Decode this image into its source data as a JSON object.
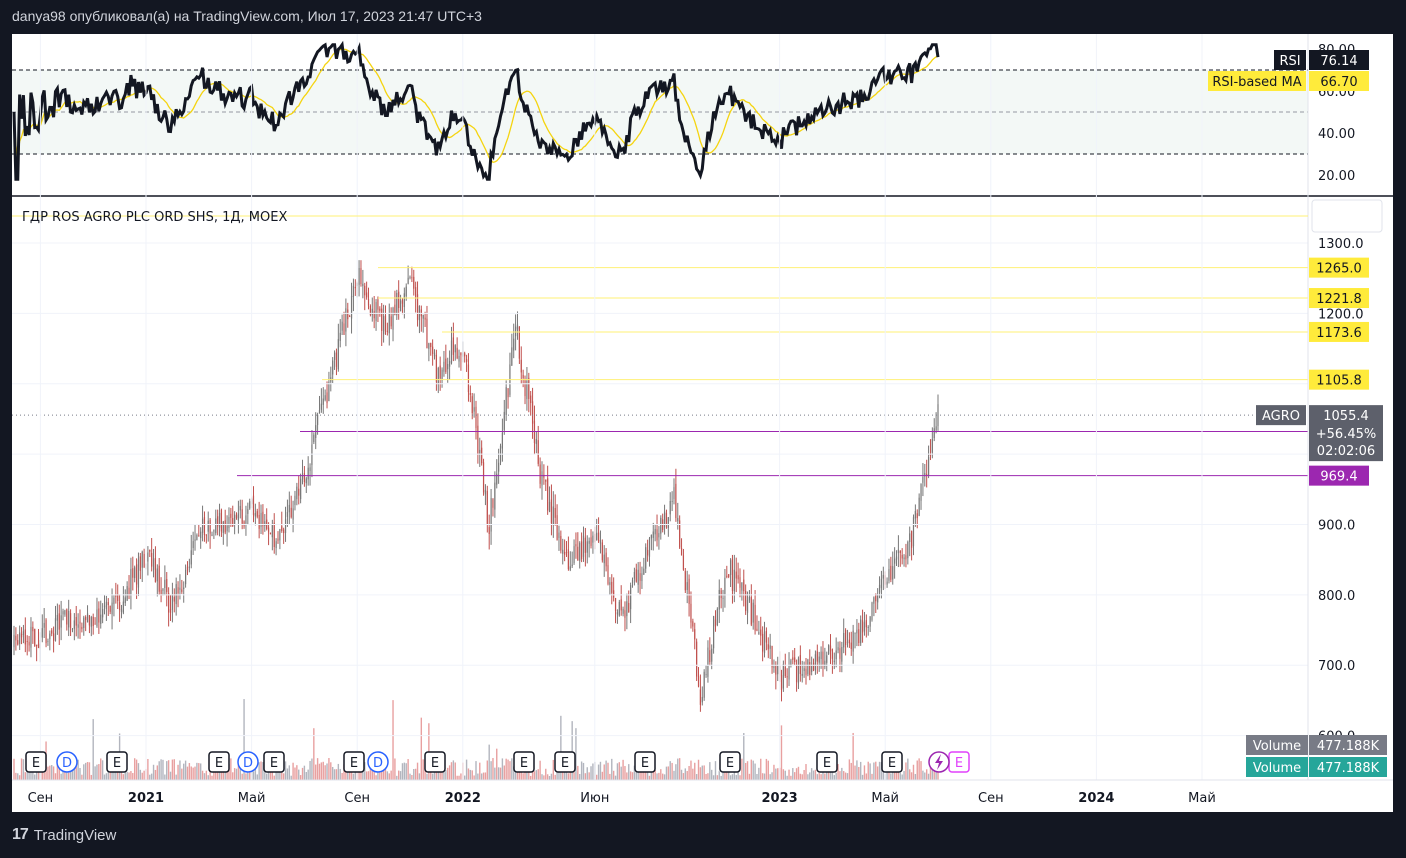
{
  "header": "danya98 опубликовал(а) на TradingView.com, Июл 17, 2023 21:47 UTC+3",
  "footer": {
    "logo": "17",
    "brand": "TradingView"
  },
  "symbol_title": "ГДР ROS AGRO PLC ORD SHS, 1Д, MOEX",
  "colors": {
    "up": "#777777",
    "down": "#c0504d",
    "level": "#fff176",
    "purple": "#9c27b0",
    "rsi": "#131722",
    "rsi_ma": "#f5d40f",
    "teal": "#26a69a"
  },
  "rsi": {
    "label": "RSI",
    "value": "76.14",
    "ma_label": "RSI-based MA",
    "ma_value": "66.70",
    "ticks": [
      "80.00",
      "60.00",
      "40.00",
      "20.00"
    ],
    "band": [
      30,
      70
    ],
    "mid": 50
  },
  "price_axis": {
    "ticks": [
      "1300.0",
      "1200.0",
      "900.0",
      "800.0",
      "700.0",
      "600.0"
    ]
  },
  "levels": [
    {
      "value": "1265.0",
      "type": "level"
    },
    {
      "value": "1221.8",
      "type": "level"
    },
    {
      "value": "1173.6",
      "type": "level"
    },
    {
      "value": "1105.8",
      "type": "level"
    },
    {
      "value": "1032.2",
      "type": "purple"
    },
    {
      "value": "969.4",
      "type": "purple"
    }
  ],
  "last_price": {
    "ticker": "AGRO",
    "value": "1055.4",
    "change": "+56.45%",
    "countdown": "02:02:06"
  },
  "volume": {
    "label": "Volume",
    "value": "477.188K"
  },
  "x_axis": {
    "labels": [
      "Сен",
      "2021",
      "Май",
      "Сен",
      "2022",
      "Июн",
      "2023",
      "Май",
      "Сен",
      "2024",
      "Май"
    ]
  },
  "event_markers": [
    "E",
    "D",
    "E",
    "E",
    "D",
    "E",
    "E",
    "D",
    "E",
    "E",
    "E",
    "E",
    "E",
    "E",
    "E",
    "E"
  ],
  "chart_data": {
    "type": "candlestick",
    "title": "ГДР ROS AGRO PLC ORD SHS, 1Д, MOEX",
    "y_range": [
      580,
      1340
    ],
    "price_path": [
      {
        "date": "2020-08",
        "price": 730
      },
      {
        "date": "2020-10",
        "price": 760
      },
      {
        "date": "2020-12",
        "price": 790
      },
      {
        "date": "2021-01",
        "price": 855
      },
      {
        "date": "2021-02",
        "price": 780
      },
      {
        "date": "2021-03",
        "price": 890
      },
      {
        "date": "2021-05",
        "price": 920
      },
      {
        "date": "2021-06",
        "price": 880
      },
      {
        "date": "2021-07",
        "price": 970
      },
      {
        "date": "2021-09",
        "price": 1250
      },
      {
        "date": "2021-10",
        "price": 1180
      },
      {
        "date": "2021-11",
        "price": 1240
      },
      {
        "date": "2021-12",
        "price": 1120
      },
      {
        "date": "2022-01",
        "price": 1160
      },
      {
        "date": "2022-02",
        "price": 900
      },
      {
        "date": "2022-03",
        "price": 1180
      },
      {
        "date": "2022-04",
        "price": 960
      },
      {
        "date": "2022-05",
        "price": 840
      },
      {
        "date": "2022-06",
        "price": 890
      },
      {
        "date": "2022-07",
        "price": 770
      },
      {
        "date": "2022-09",
        "price": 940
      },
      {
        "date": "2022-10",
        "price": 660
      },
      {
        "date": "2022-11",
        "price": 840
      },
      {
        "date": "2022-12",
        "price": 770
      },
      {
        "date": "2023-01",
        "price": 680
      },
      {
        "date": "2023-02",
        "price": 700
      },
      {
        "date": "2023-04",
        "price": 740
      },
      {
        "date": "2023-05",
        "price": 830
      },
      {
        "date": "2023-06",
        "price": 880
      },
      {
        "date": "2023-07",
        "price": 1055.4
      }
    ]
  }
}
